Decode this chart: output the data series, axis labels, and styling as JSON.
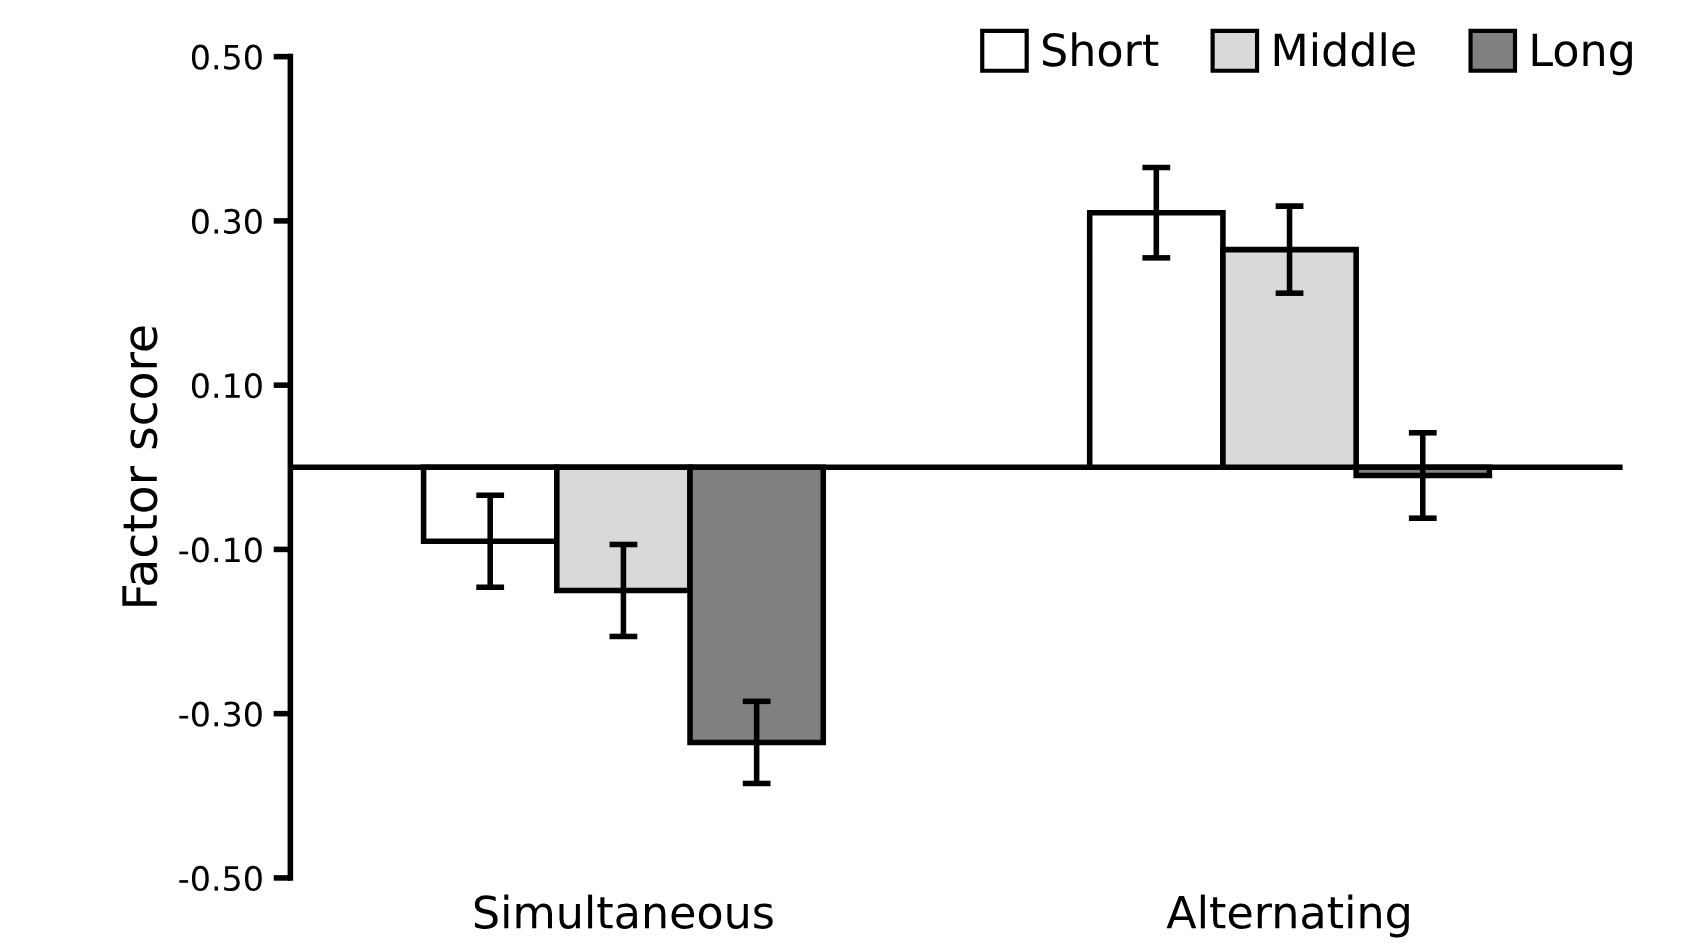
{
  "chart_data": {
    "type": "bar",
    "ylabel": "Factor score",
    "categories": [
      "Simultaneous",
      "Alternating"
    ],
    "series": [
      {
        "name": "Short",
        "color": "#ffffff",
        "values": [
          -0.09,
          0.31
        ],
        "errors": [
          0.056,
          0.055
        ]
      },
      {
        "name": "Middle",
        "color": "#d9d9d9",
        "values": [
          -0.15,
          0.265
        ],
        "errors": [
          0.056,
          0.053
        ]
      },
      {
        "name": "Long",
        "color": "#808080",
        "values": [
          -0.335,
          -0.01
        ],
        "errors": [
          0.05,
          0.052
        ]
      }
    ],
    "ylim": [
      -0.5,
      0.5
    ],
    "yticks": [
      {
        "value": -0.5,
        "label": "-0.50"
      },
      {
        "value": -0.3,
        "label": "-0.30"
      },
      {
        "value": -0.1,
        "label": "-0.10"
      },
      {
        "value": 0.1,
        "label": "0.10"
      },
      {
        "value": 0.3,
        "label": "0.30"
      },
      {
        "value": 0.5,
        "label": "0.50"
      }
    ],
    "ref_lines": [
      {
        "axis": "y",
        "value": 0,
        "color": "#000000"
      }
    ],
    "legend": "top right",
    "grid": false
  }
}
